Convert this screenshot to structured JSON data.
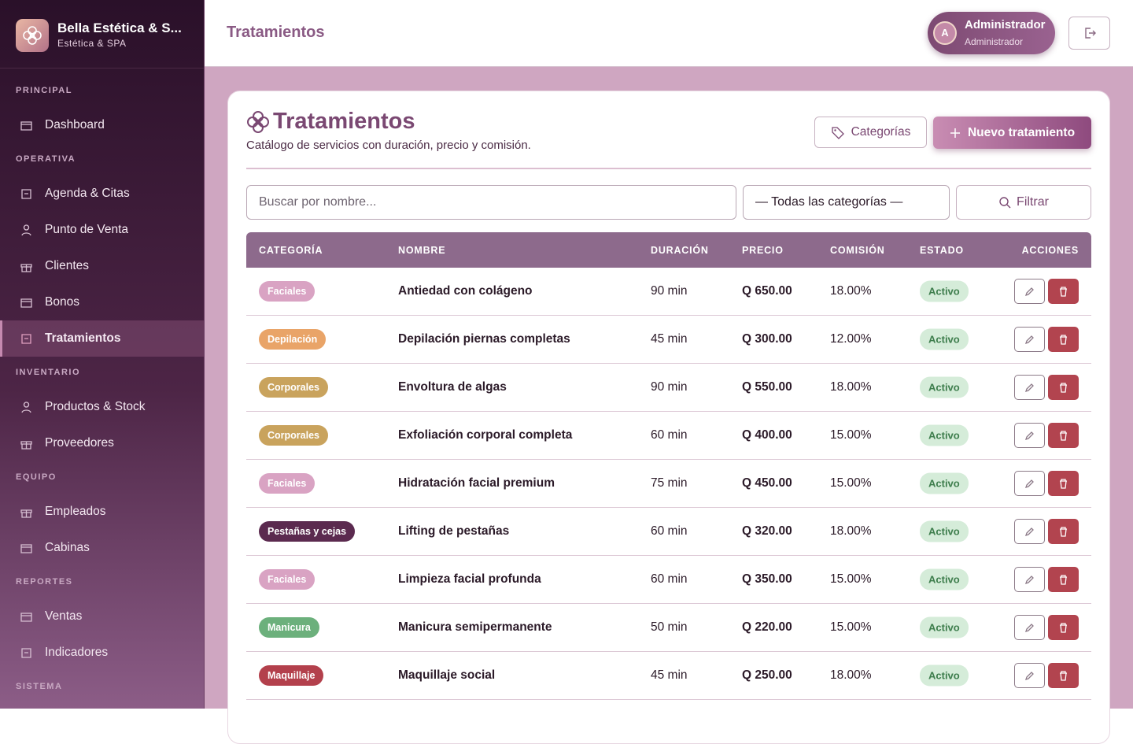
{
  "brand": {
    "name": "Bella Estética & S...",
    "subtitle": "Estética & SPA"
  },
  "sidebar": {
    "sections": [
      {
        "title": "PRINCIPAL",
        "items": [
          {
            "label": "Dashboard"
          }
        ]
      },
      {
        "title": "OPERATIVA",
        "items": [
          {
            "label": "Agenda & Citas"
          },
          {
            "label": "Punto de Venta"
          },
          {
            "label": "Clientes"
          },
          {
            "label": "Bonos"
          },
          {
            "label": "Tratamientos",
            "active": true
          }
        ]
      },
      {
        "title": "INVENTARIO",
        "items": [
          {
            "label": "Productos & Stock"
          },
          {
            "label": "Proveedores"
          }
        ]
      },
      {
        "title": "EQUIPO",
        "items": [
          {
            "label": "Empleados"
          },
          {
            "label": "Cabinas"
          }
        ]
      },
      {
        "title": "REPORTES",
        "items": [
          {
            "label": "Ventas"
          },
          {
            "label": "Indicadores"
          }
        ]
      },
      {
        "title": "SISTEMA",
        "items": []
      }
    ]
  },
  "header": {
    "title": "Tratamientos",
    "user": {
      "initial": "A",
      "name": "Administrador",
      "role": "Administrador"
    }
  },
  "card": {
    "title": "Tratamientos",
    "subtitle": "Catálogo de servicios con duración, precio y comisión.",
    "buttons": {
      "categories": "Categorías",
      "new": "Nuevo tratamiento"
    },
    "filters": {
      "search": "Buscar por nombre...",
      "category": "— Todas las categorías —",
      "submit": "Filtrar"
    }
  },
  "table": {
    "columns": [
      "CATEGORÍA",
      "NOMBRE",
      "DURACIÓN",
      "PRECIO",
      "COMISIÓN",
      "ESTADO",
      "ACCIONES"
    ],
    "rows": [
      {
        "category": "Faciales",
        "category_color": "#d9a3c3",
        "name": "Antiedad con colágeno",
        "duration": "90 min",
        "price": "Q 650.00",
        "commission": "18.00%",
        "status": "Activo"
      },
      {
        "category": "Depilación",
        "category_color": "#e9a468",
        "name": "Depilación piernas completas",
        "duration": "45 min",
        "price": "Q 300.00",
        "commission": "12.00%",
        "status": "Activo"
      },
      {
        "category": "Corporales",
        "category_color": "#c9a35d",
        "name": "Envoltura de algas",
        "duration": "90 min",
        "price": "Q 550.00",
        "commission": "18.00%",
        "status": "Activo"
      },
      {
        "category": "Corporales",
        "category_color": "#c9a35d",
        "name": "Exfoliación corporal completa",
        "duration": "60 min",
        "price": "Q 400.00",
        "commission": "15.00%",
        "status": "Activo"
      },
      {
        "category": "Faciales",
        "category_color": "#d9a3c3",
        "name": "Hidratación facial premium",
        "duration": "75 min",
        "price": "Q 450.00",
        "commission": "15.00%",
        "status": "Activo"
      },
      {
        "category": "Pestañas y cejas",
        "category_color": "#5b2a4f",
        "name": "Lifting de pestañas",
        "duration": "60 min",
        "price": "Q 320.00",
        "commission": "18.00%",
        "status": "Activo"
      },
      {
        "category": "Faciales",
        "category_color": "#d9a3c3",
        "name": "Limpieza facial profunda",
        "duration": "60 min",
        "price": "Q 350.00",
        "commission": "15.00%",
        "status": "Activo"
      },
      {
        "category": "Manicura",
        "category_color": "#6cb07c",
        "name": "Manicura semipermanente",
        "duration": "50 min",
        "price": "Q 220.00",
        "commission": "15.00%",
        "status": "Activo"
      },
      {
        "category": "Maquillaje",
        "category_color": "#b3404c",
        "name": "Maquillaje social",
        "duration": "45 min",
        "price": "Q 250.00",
        "commission": "18.00%",
        "status": "Activo"
      }
    ]
  }
}
